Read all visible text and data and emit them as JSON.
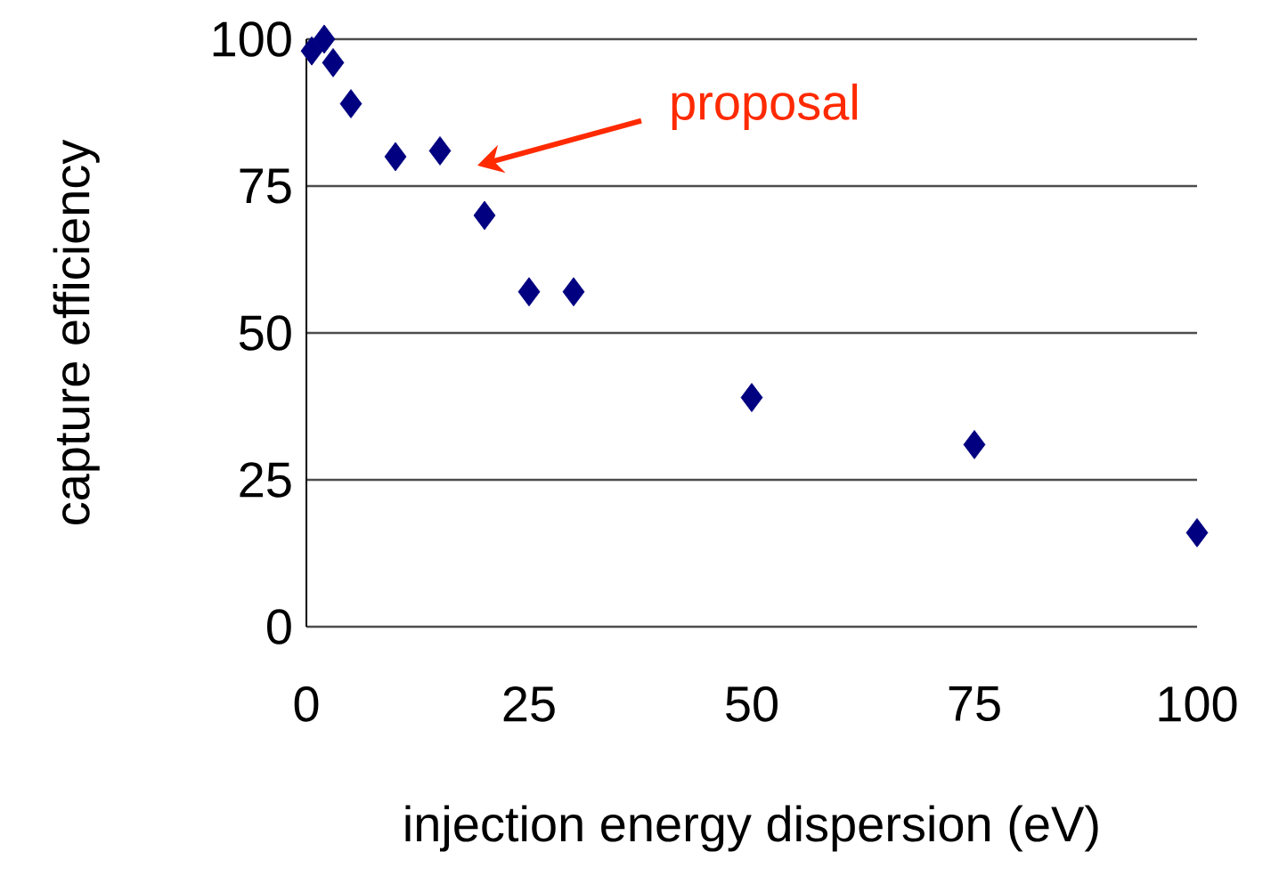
{
  "chart_data": {
    "type": "scatter",
    "xlabel": "injection energy dispersion (eV)",
    "ylabel": "capture efficiency",
    "x": [
      0.6,
      2,
      3,
      5,
      10,
      15,
      20,
      25,
      30,
      50,
      75,
      100
    ],
    "series": [
      {
        "color": "#000080",
        "values": [
          98,
          100,
          96,
          89,
          80,
          81,
          70,
          57,
          57,
          39,
          31,
          16
        ]
      }
    ],
    "xlim": [
      0,
      100
    ],
    "ylim": [
      0,
      100
    ],
    "xticks": [
      0,
      25,
      50,
      75,
      100
    ],
    "yticks": [
      0,
      25,
      50,
      75,
      100
    ],
    "grid": "y",
    "marker": "diamond",
    "annotations": [
      "proposal"
    ]
  }
}
